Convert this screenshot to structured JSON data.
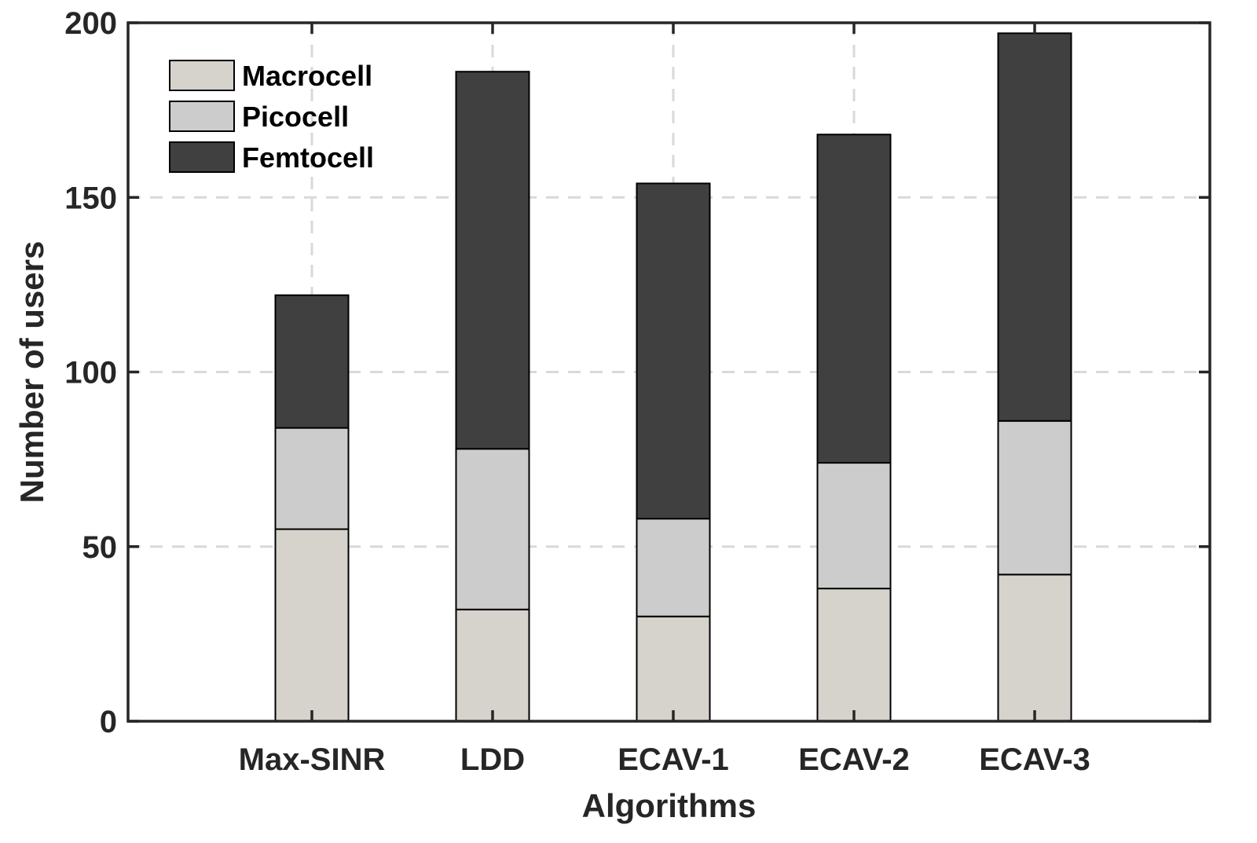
{
  "chart_data": {
    "type": "bar",
    "stacked": true,
    "title": "",
    "xlabel": "Algorithms",
    "ylabel": "Number of users",
    "ylim": [
      0,
      200
    ],
    "yticks": [
      0,
      50,
      100,
      150,
      200
    ],
    "grid": true,
    "legend_position": "top-left",
    "categories": [
      "Max-SINR",
      "LDD",
      "ECAV-1",
      "ECAV-2",
      "ECAV-3"
    ],
    "series": [
      {
        "name": "Macrocell",
        "color": "#d6d2cc",
        "values": [
          55,
          32,
          30,
          38,
          42
        ]
      },
      {
        "name": "Picocell",
        "color": "#cccccc",
        "values": [
          29,
          46,
          28,
          36,
          44
        ]
      },
      {
        "name": "Femtocell",
        "color": "#404040",
        "values": [
          38,
          108,
          96,
          94,
          111
        ]
      }
    ]
  }
}
